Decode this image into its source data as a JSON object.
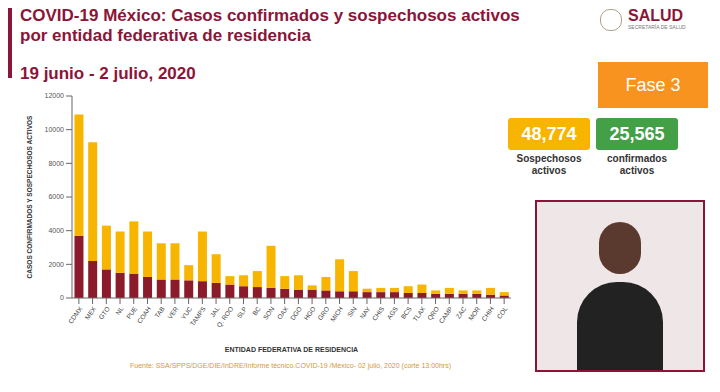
{
  "chart_data": {
    "type": "bar",
    "title": "COVID-19 México: Casos confirmados y sospechosos activos\npor entidad federativa de residencia",
    "subtitle": "19 junio - 2 julio, 2020",
    "x_label": "ENTIDAD FEDERATIVA DE RESIDENCIA",
    "y_label": "CASOS CONFIRMADOS Y SOSPECHOSOS ACTIVOS",
    "categories": [
      "CDMX",
      "MEX",
      "GTO",
      "NL",
      "PUE",
      "COAH",
      "TAB",
      "VER",
      "YUC",
      "TAMPS",
      "JAL",
      "Q. ROO",
      "SLP",
      "BC",
      "SON",
      "OAX",
      "DGO",
      "HGO",
      "GRO",
      "MICH",
      "SIN",
      "NAY",
      "CHIS",
      "AGS",
      "BCS",
      "TLAX",
      "QRO",
      "CAMP",
      "ZAC",
      "MOR",
      "CHIH",
      "COL"
    ],
    "series": [
      {
        "name": "confirmados activos",
        "color": "#8b1a2b",
        "total": {
          "value": 25565,
          "label": "25,565"
        },
        "values": [
          3700,
          2200,
          1700,
          1500,
          1450,
          1250,
          1100,
          1100,
          1050,
          1000,
          900,
          800,
          700,
          650,
          600,
          550,
          500,
          500,
          450,
          400,
          400,
          350,
          350,
          350,
          300,
          300,
          250,
          250,
          250,
          250,
          200,
          150
        ]
      },
      {
        "name": "Sospechosos activos",
        "color": "#f7b500",
        "total": {
          "value": 48774,
          "label": "48,774"
        },
        "values": [
          7200,
          7050,
          2600,
          2450,
          3100,
          2700,
          2150,
          2150,
          900,
          2950,
          1700,
          500,
          650,
          950,
          2500,
          750,
          850,
          250,
          800,
          1900,
          1200,
          200,
          250,
          250,
          400,
          500,
          200,
          350,
          200,
          200,
          400,
          200
        ]
      }
    ],
    "stacked": true,
    "ylim": [
      0,
      12000
    ],
    "yticks": [
      0,
      2000,
      4000,
      6000,
      8000,
      10000,
      12000
    ],
    "grid": false,
    "annotations": {
      "phase": "Fase 3",
      "logo": "SALUD",
      "logo_sub": "SECRETARÍA DE SALUD",
      "source": "Fuente: SSA/SPPS/DGE/DIE/InDRE/Informe técnico.COVID-19 /México- 02 julio, 2020 (corte 13:00hrs)"
    }
  }
}
